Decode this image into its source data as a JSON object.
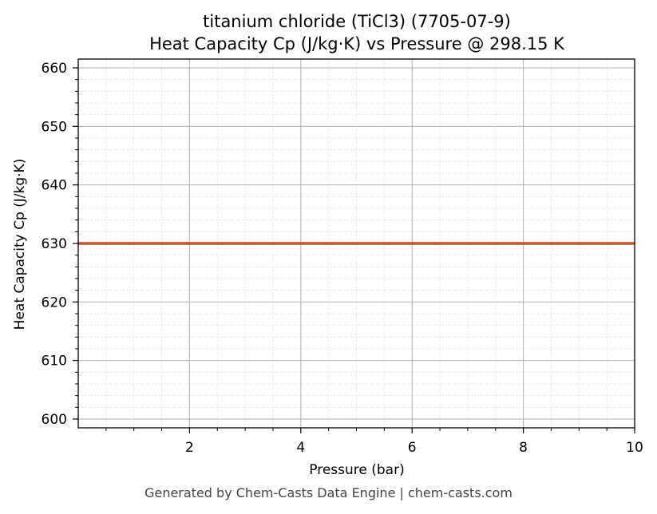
{
  "chart_data": {
    "type": "line",
    "title_line1": "titanium chloride (TiCl3) (7705-07-9)",
    "title_line2": "Heat Capacity Cp (J/kg·K) vs Pressure @ 298.15 K",
    "xlabel": "Pressure (bar)",
    "ylabel": "Heat Capacity Cp (J/kg·K)",
    "xlim": [
      0.0,
      10.0
    ],
    "ylim": [
      598.5,
      661.5
    ],
    "x_ticks": [
      2,
      4,
      6,
      8,
      10
    ],
    "x_tick_labels": [
      "2",
      "4",
      "6",
      "8",
      "10"
    ],
    "y_ticks": [
      600,
      610,
      620,
      630,
      640,
      650,
      660
    ],
    "y_tick_labels": [
      "600",
      "610",
      "620",
      "630",
      "640",
      "650",
      "660"
    ],
    "grid": true,
    "series": [
      {
        "color": "#c8522a",
        "x": [
          0.0,
          10.0
        ],
        "y": [
          630,
          630
        ]
      }
    ]
  },
  "footer": "Generated by Chem-Casts Data Engine | chem-casts.com"
}
